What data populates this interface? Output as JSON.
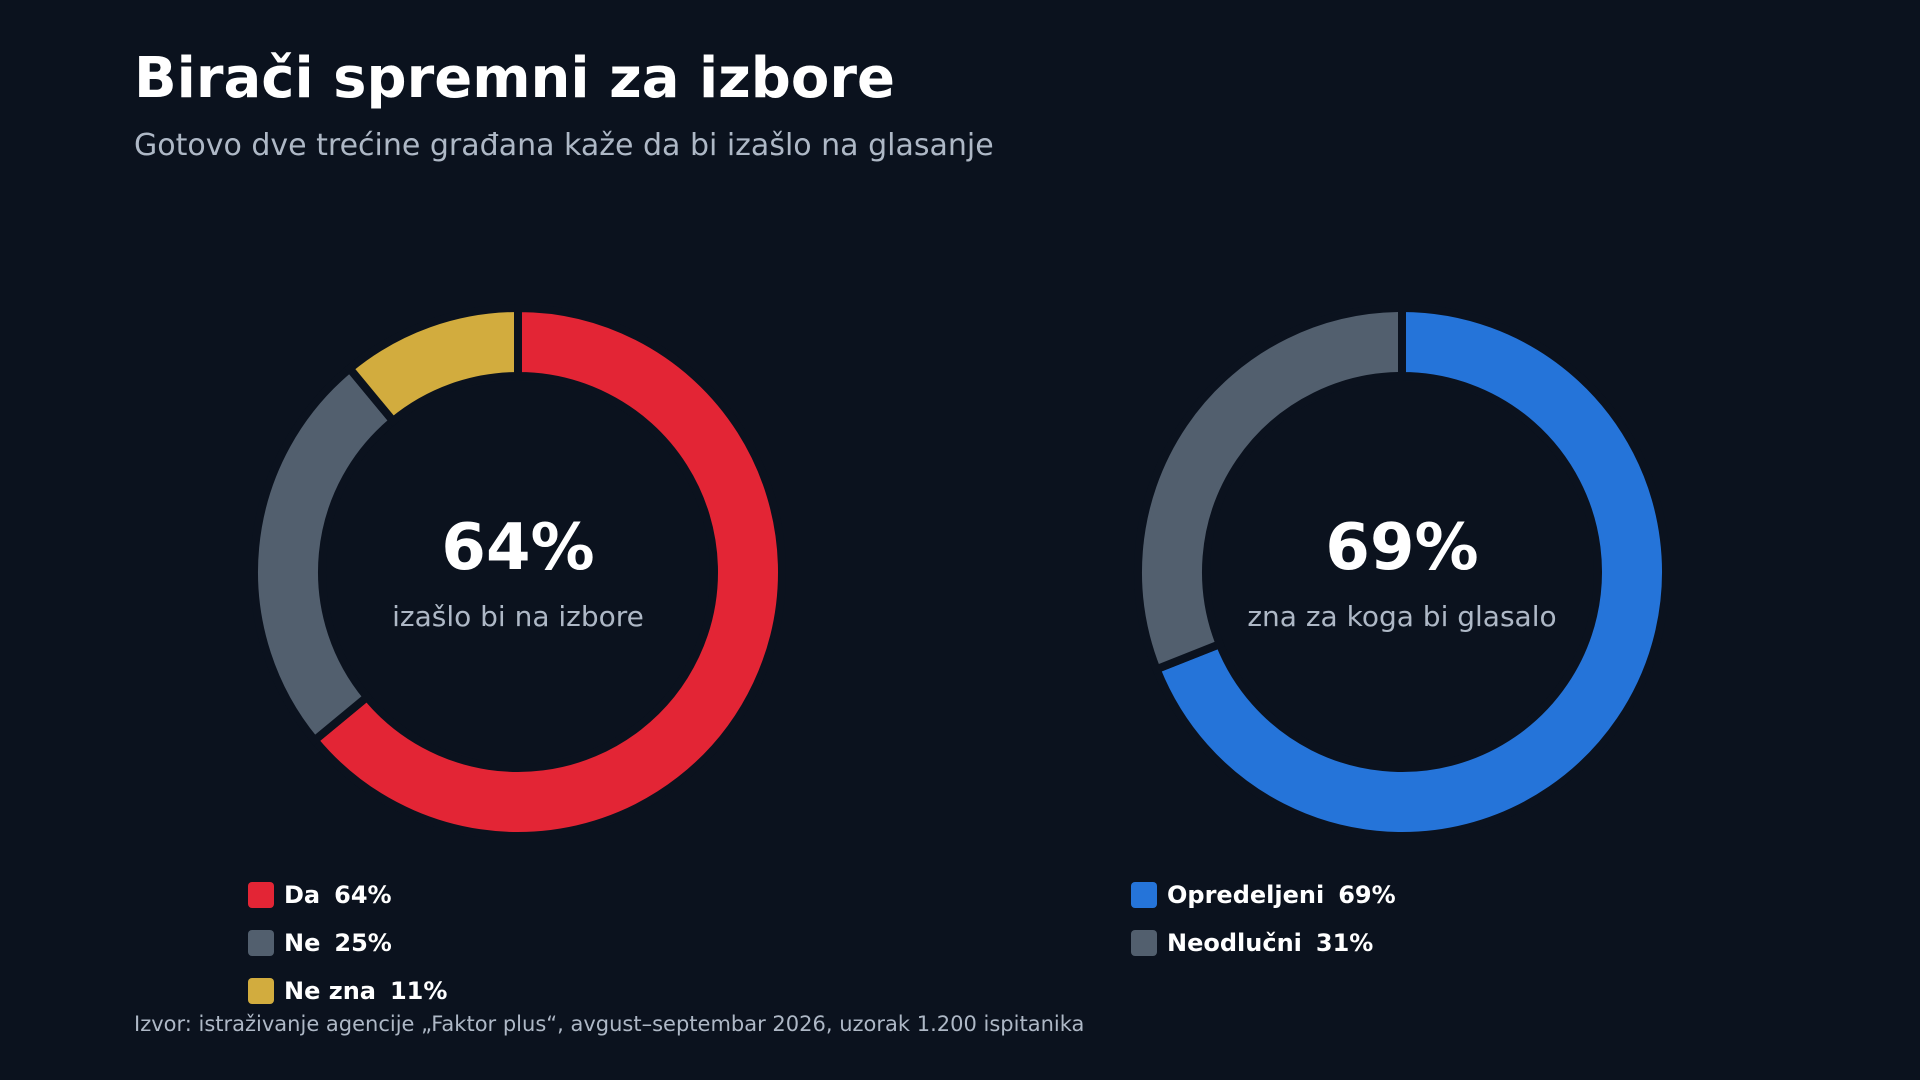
{
  "title": "Birači spremni za izbore",
  "subtitle": "Gotovo dve trećine građana kaže da bi izašlo na glasanje",
  "source": "Izvor: istraživanje agencije „Faktor plus“, avgust–septembar 2026, uzorak 1.200 ispitanika",
  "colors": {
    "background": "#0b121e",
    "red": "#e32535",
    "gray": "#525f6e",
    "gold": "#d2ac3e",
    "blue": "#2574d9",
    "title_text": "#ffffff",
    "muted_text": "#aeb8c6"
  },
  "chart_data": [
    {
      "type": "pie",
      "variant": "donut",
      "center_value": "64%",
      "center_label": "izašlo bi na izbore",
      "slices": [
        {
          "label": "Da",
          "value": 64,
          "value_text": "64%",
          "color": "#e32535"
        },
        {
          "label": "Ne",
          "value": 25,
          "value_text": "25%",
          "color": "#525f6e"
        },
        {
          "label": "Ne zna",
          "value": 11,
          "value_text": "11%",
          "color": "#d2ac3e"
        }
      ]
    },
    {
      "type": "pie",
      "variant": "donut",
      "center_value": "69%",
      "center_label": "zna za koga bi glasalo",
      "slices": [
        {
          "label": "Opredeljeni",
          "value": 69,
          "value_text": "69%",
          "color": "#2574d9"
        },
        {
          "label": "Neodlučni",
          "value": 31,
          "value_text": "31%",
          "color": "#525f6e"
        }
      ]
    }
  ]
}
